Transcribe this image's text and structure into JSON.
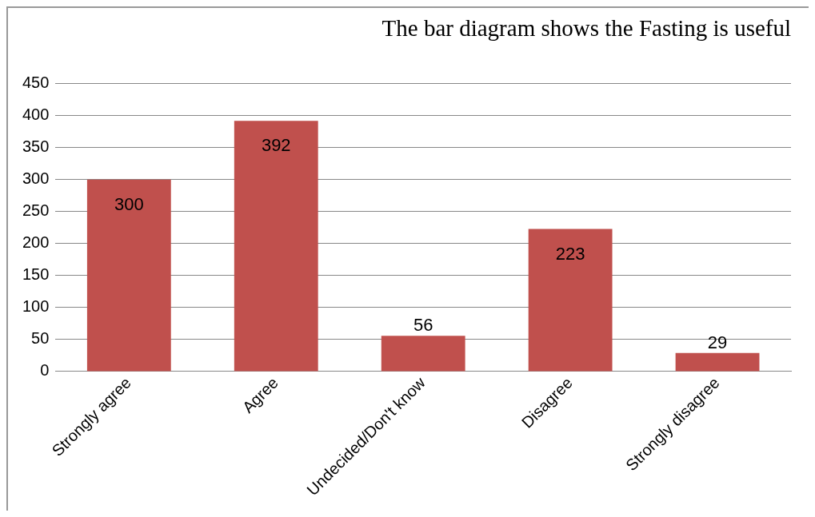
{
  "chart_data": {
    "type": "bar",
    "title": "The bar diagram shows the Fasting is useful",
    "categories": [
      "Strongly agree",
      "Agree",
      "Undecided/Don't know",
      "Disagree",
      "Strongly disagree"
    ],
    "values": [
      300,
      392,
      56,
      223,
      29
    ],
    "color": "#c0504d",
    "ylim": [
      0,
      450
    ],
    "yticks": [
      0,
      50,
      100,
      150,
      200,
      250,
      300,
      350,
      400,
      450
    ],
    "grid": "y",
    "data_labels": true,
    "legend": false
  }
}
